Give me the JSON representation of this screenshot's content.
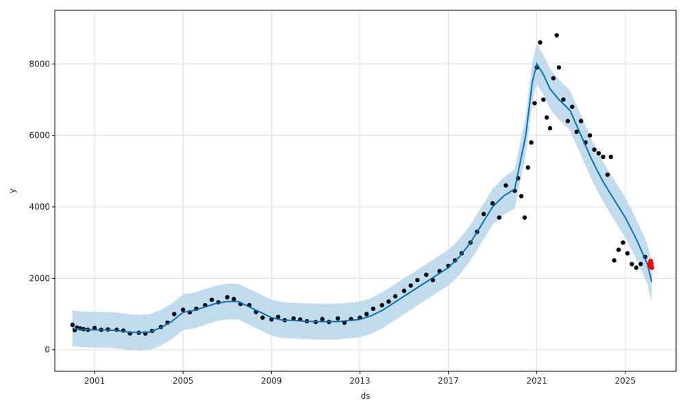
{
  "chart_data": {
    "type": "line",
    "xlabel": "ds",
    "ylabel": "y",
    "xlim": [
      1999.2,
      2027.3
    ],
    "ylim": [
      -600,
      9500
    ],
    "x_ticks": [
      {
        "value": 2001,
        "label": "2001"
      },
      {
        "value": 2005,
        "label": "2005"
      },
      {
        "value": 2009,
        "label": "2009"
      },
      {
        "value": 2013,
        "label": "2013"
      },
      {
        "value": 2017,
        "label": "2017"
      },
      {
        "value": 2021,
        "label": "2021"
      },
      {
        "value": 2025,
        "label": "2025"
      }
    ],
    "y_ticks": [
      {
        "value": 0,
        "label": "0"
      },
      {
        "value": 2000,
        "label": "2000"
      },
      {
        "value": 4000,
        "label": "4000"
      },
      {
        "value": 6000,
        "label": "6000"
      },
      {
        "value": 8000,
        "label": "8000"
      }
    ],
    "grid": true,
    "colors": {
      "forecast_line": "#0072b2",
      "uncertainty_band": "#b7d6ea",
      "observed": "#000000",
      "highlight": "#ff0000",
      "grid": "#dddddd"
    },
    "series": [
      {
        "role": "forecast",
        "x": [
          2000.0,
          2000.5,
          2001.0,
          2001.5,
          2002.0,
          2002.5,
          2003.0,
          2003.5,
          2004.0,
          2004.5,
          2005.0,
          2005.5,
          2006.0,
          2006.5,
          2007.0,
          2007.5,
          2008.0,
          2008.5,
          2009.0,
          2009.5,
          2010.0,
          2010.5,
          2011.0,
          2011.5,
          2012.0,
          2012.5,
          2013.0,
          2013.5,
          2014.0,
          2014.5,
          2015.0,
          2015.5,
          2016.0,
          2016.5,
          2017.0,
          2017.5,
          2018.0,
          2018.5,
          2019.0,
          2019.5,
          2020.0,
          2020.5,
          2020.8,
          2021.0,
          2021.3,
          2021.6,
          2022.0,
          2022.5,
          2023.0,
          2023.5,
          2024.0,
          2024.5,
          2025.0,
          2025.5,
          2026.0,
          2026.2
        ],
        "y": [
          600,
          570,
          560,
          560,
          540,
          500,
          480,
          500,
          620,
          800,
          1050,
          1100,
          1200,
          1300,
          1350,
          1350,
          1200,
          1050,
          900,
          830,
          820,
          800,
          790,
          790,
          790,
          820,
          850,
          950,
          1100,
          1300,
          1500,
          1700,
          1900,
          2100,
          2300,
          2600,
          3000,
          3500,
          4000,
          4300,
          4500,
          6000,
          7500,
          8000,
          7700,
          7300,
          7000,
          6700,
          6000,
          5300,
          4700,
          4200,
          3700,
          3100,
          2400,
          1900
        ],
        "band_width": [
          500,
          500,
          500,
          500,
          500,
          500,
          500,
          500,
          500,
          500,
          500,
          500,
          500,
          500,
          500,
          500,
          500,
          500,
          500,
          500,
          500,
          500,
          500,
          500,
          500,
          500,
          500,
          500,
          500,
          500,
          500,
          500,
          500,
          500,
          500,
          500,
          500,
          500,
          500,
          520,
          550,
          560,
          560,
          560,
          560,
          560,
          560,
          560,
          560,
          560,
          560,
          560,
          560,
          560,
          560,
          560
        ]
      },
      {
        "role": "observed",
        "x": [
          2000.0,
          2000.1,
          2000.2,
          2000.35,
          2000.5,
          2000.7,
          2001.0,
          2001.3,
          2001.6,
          2002.0,
          2002.3,
          2002.6,
          2003.0,
          2003.3,
          2003.6,
          2004.0,
          2004.3,
          2004.6,
          2005.0,
          2005.3,
          2005.6,
          2006.0,
          2006.3,
          2006.6,
          2007.0,
          2007.3,
          2007.6,
          2008.0,
          2008.3,
          2008.6,
          2009.0,
          2009.3,
          2009.6,
          2010.0,
          2010.3,
          2010.6,
          2011.0,
          2011.3,
          2011.6,
          2012.0,
          2012.3,
          2012.6,
          2013.0,
          2013.3,
          2013.6,
          2014.0,
          2014.3,
          2014.6,
          2015.0,
          2015.3,
          2015.6,
          2016.0,
          2016.3,
          2016.6,
          2017.0,
          2017.3,
          2017.6,
          2018.0,
          2018.3,
          2018.6,
          2019.0,
          2019.3,
          2019.6,
          2020.0,
          2020.15,
          2020.3,
          2020.45,
          2020.6,
          2020.75,
          2020.9,
          2021.0,
          2021.15,
          2021.3,
          2021.45,
          2021.6,
          2021.75,
          2021.9,
          2022.0,
          2022.2,
          2022.4,
          2022.6,
          2022.8,
          2023.0,
          2023.2,
          2023.4,
          2023.6,
          2023.8,
          2024.0,
          2024.2,
          2024.35,
          2024.5,
          2024.7,
          2024.9,
          2025.1,
          2025.3,
          2025.5,
          2025.7,
          2025.9
        ],
        "y": [
          700,
          550,
          620,
          600,
          580,
          560,
          610,
          560,
          570,
          560,
          540,
          460,
          480,
          460,
          530,
          640,
          760,
          1000,
          1120,
          1050,
          1150,
          1250,
          1400,
          1330,
          1470,
          1420,
          1280,
          1250,
          1060,
          900,
          850,
          920,
          830,
          880,
          850,
          800,
          780,
          860,
          780,
          880,
          760,
          860,
          900,
          1000,
          1150,
          1250,
          1350,
          1500,
          1650,
          1800,
          1950,
          2100,
          1950,
          2200,
          2350,
          2500,
          2700,
          3000,
          3300,
          3800,
          4100,
          3700,
          4600,
          4450,
          4800,
          4300,
          3700,
          5100,
          5800,
          6900,
          7900,
          8600,
          7000,
          6500,
          6200,
          7600,
          8800,
          7900,
          7000,
          6400,
          6800,
          6100,
          6400,
          5800,
          6000,
          5600,
          5500,
          5400,
          4900,
          5400,
          2500,
          2800,
          3000,
          2700,
          2400,
          2300,
          2400,
          2600
        ]
      },
      {
        "role": "highlight",
        "x": [
          2026.1,
          2026.12,
          2026.15,
          2026.18,
          2026.2
        ],
        "y": [
          2350,
          2420,
          2480,
          2400,
          2300
        ]
      }
    ]
  }
}
